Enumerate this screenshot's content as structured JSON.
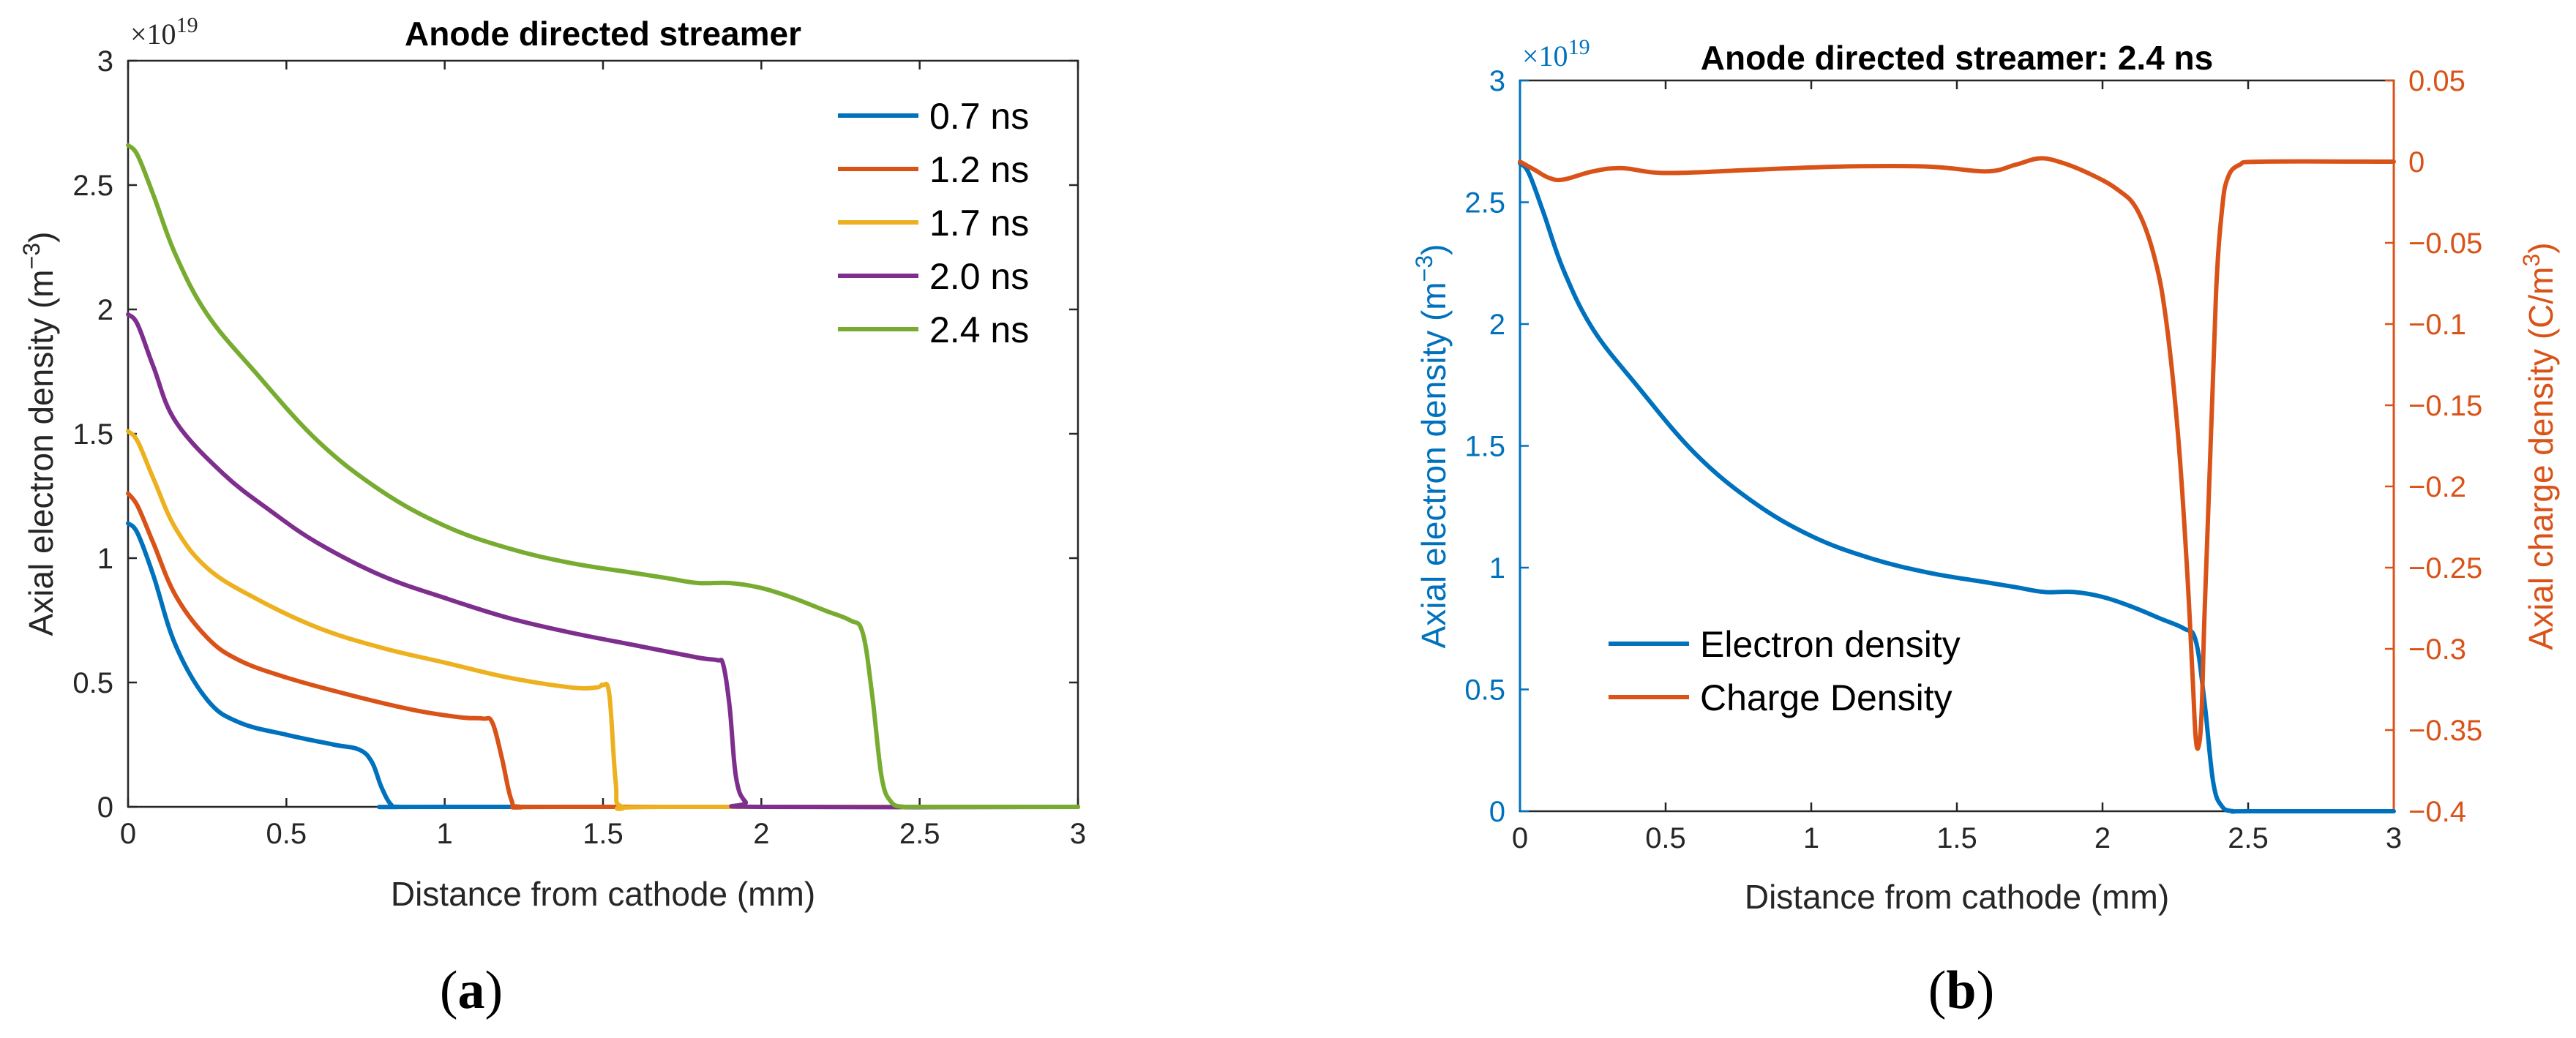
{
  "chart_data": [
    {
      "type": "line",
      "title": "Anode directed streamer",
      "xlabel": "Distance from cathode (mm)",
      "ylabel_main": "Axial electron density (m",
      "ylabel_sup": "−3",
      "ylabel_end": ")",
      "xlim": [
        0,
        3
      ],
      "ylim": [
        0,
        3
      ],
      "xticks": [
        0,
        0.5,
        1,
        1.5,
        2,
        2.5,
        3
      ],
      "xtick_labels": [
        "0",
        "0.5",
        "1",
        "1.5",
        "2",
        "2.5",
        "3"
      ],
      "yticks": [
        0,
        0.5,
        1,
        1.5,
        2,
        2.5,
        3
      ],
      "ytick_labels": [
        "0",
        "0.5",
        "1",
        "1.5",
        "2",
        "2.5",
        "3"
      ],
      "y_multiplier_base": "×10",
      "y_multiplier_exp": "19",
      "legend_position": "top-right",
      "caption": "a",
      "series": [
        {
          "name": "0.7 ns",
          "color": "#0072BD",
          "x": [
            0,
            0.03,
            0.08,
            0.15,
            0.25,
            0.35,
            0.5,
            0.65,
            0.73,
            0.77,
            0.8,
            0.83,
            0.86,
            1.0,
            3.0
          ],
          "y": [
            1.14,
            1.1,
            0.93,
            0.65,
            0.43,
            0.34,
            0.29,
            0.25,
            0.23,
            0.18,
            0.08,
            0.01,
            0.0,
            0.0,
            0.0
          ]
        },
        {
          "name": "1.2 ns",
          "color": "#D95319",
          "x": [
            0,
            0.03,
            0.08,
            0.15,
            0.25,
            0.35,
            0.5,
            0.7,
            0.9,
            1.05,
            1.12,
            1.15,
            1.18,
            1.21,
            1.24,
            1.4,
            3.0
          ],
          "y": [
            1.26,
            1.21,
            1.06,
            0.85,
            0.68,
            0.59,
            0.52,
            0.45,
            0.39,
            0.36,
            0.355,
            0.34,
            0.2,
            0.03,
            0.0,
            0.0,
            0.0
          ]
        },
        {
          "name": "1.7 ns",
          "color": "#EDB120",
          "x": [
            0,
            0.03,
            0.08,
            0.15,
            0.25,
            0.4,
            0.6,
            0.8,
            1.0,
            1.2,
            1.4,
            1.48,
            1.5,
            1.52,
            1.54,
            1.56,
            1.7,
            3.0
          ],
          "y": [
            1.51,
            1.47,
            1.32,
            1.12,
            0.96,
            0.84,
            0.72,
            0.64,
            0.58,
            0.52,
            0.48,
            0.48,
            0.49,
            0.45,
            0.1,
            0.0,
            0.0,
            0.0
          ]
        },
        {
          "name": "2.0 ns",
          "color": "#7E2F8E",
          "x": [
            0,
            0.03,
            0.08,
            0.15,
            0.3,
            0.45,
            0.6,
            0.8,
            1.0,
            1.2,
            1.4,
            1.6,
            1.8,
            1.86,
            1.88,
            1.9,
            1.92,
            1.95,
            2.0,
            3.0
          ],
          "y": [
            1.98,
            1.94,
            1.77,
            1.55,
            1.34,
            1.19,
            1.06,
            0.93,
            0.84,
            0.76,
            0.7,
            0.65,
            0.6,
            0.59,
            0.57,
            0.4,
            0.12,
            0.02,
            0.0,
            0.0
          ]
        },
        {
          "name": "2.4 ns",
          "color": "#77AC30",
          "x": [
            0,
            0.03,
            0.08,
            0.15,
            0.25,
            0.4,
            0.6,
            0.8,
            1.0,
            1.2,
            1.4,
            1.6,
            1.7,
            1.8,
            1.9,
            2.0,
            2.1,
            2.2,
            2.28,
            2.32,
            2.35,
            2.38,
            2.41,
            2.45,
            2.5,
            3.0
          ],
          "y": [
            2.66,
            2.62,
            2.46,
            2.22,
            1.98,
            1.75,
            1.47,
            1.27,
            1.13,
            1.04,
            0.98,
            0.94,
            0.92,
            0.9,
            0.9,
            0.88,
            0.84,
            0.79,
            0.75,
            0.7,
            0.45,
            0.12,
            0.02,
            0.0,
            0.0,
            0.0
          ]
        }
      ]
    },
    {
      "type": "line",
      "title": "Anode directed streamer: 2.4 ns",
      "xlabel": "Distance from cathode (mm)",
      "ylabel_main": "Axial electron density (m",
      "ylabel_sup": "−3",
      "ylabel_end": ")",
      "y2label_main": "Axial charge density (C/m",
      "y2label_sup": "3",
      "y2label_end": ")",
      "xlim": [
        0,
        3
      ],
      "ylim": [
        0,
        3
      ],
      "y2lim": [
        -0.4,
        0.05
      ],
      "xticks": [
        0,
        0.5,
        1,
        1.5,
        2,
        2.5,
        3
      ],
      "xtick_labels": [
        "0",
        "0.5",
        "1",
        "1.5",
        "2",
        "2.5",
        "3"
      ],
      "yticks": [
        0,
        0.5,
        1,
        1.5,
        2,
        2.5,
        3
      ],
      "ytick_labels": [
        "0",
        "0.5",
        "1",
        "1.5",
        "2",
        "2.5",
        "3"
      ],
      "y2ticks": [
        0.05,
        0,
        -0.05,
        -0.1,
        -0.15,
        -0.2,
        -0.25,
        -0.3,
        -0.35,
        -0.4
      ],
      "y2tick_labels": [
        "0.05",
        "0",
        "−0.05",
        "−0.1",
        "−0.15",
        "−0.2",
        "−0.25",
        "−0.3",
        "−0.35",
        "−0.4"
      ],
      "y_multiplier_base": "×10",
      "y_multiplier_exp": "19",
      "left_axis_color": "#0072BD",
      "right_axis_color": "#D95319",
      "legend_position": "bottom-left",
      "caption": "b",
      "series": [
        {
          "name": "Electron density",
          "axis": "left",
          "color": "#0072BD",
          "x": [
            0,
            0.03,
            0.08,
            0.15,
            0.25,
            0.4,
            0.6,
            0.8,
            1.0,
            1.2,
            1.4,
            1.6,
            1.7,
            1.8,
            1.9,
            2.0,
            2.1,
            2.2,
            2.28,
            2.32,
            2.35,
            2.38,
            2.41,
            2.45,
            2.5,
            3.0
          ],
          "y": [
            2.66,
            2.62,
            2.46,
            2.22,
            1.98,
            1.75,
            1.47,
            1.27,
            1.13,
            1.04,
            0.98,
            0.94,
            0.92,
            0.9,
            0.9,
            0.88,
            0.84,
            0.79,
            0.75,
            0.7,
            0.45,
            0.12,
            0.02,
            0.0,
            0.0,
            0.0
          ]
        },
        {
          "name": "Charge Density",
          "axis": "right",
          "color": "#D95319",
          "x": [
            0,
            0.05,
            0.1,
            0.15,
            0.25,
            0.35,
            0.5,
            0.8,
            1.1,
            1.4,
            1.6,
            1.7,
            1.78,
            1.85,
            1.95,
            2.05,
            2.12,
            2.18,
            2.22,
            2.26,
            2.29,
            2.31,
            2.32,
            2.33,
            2.34,
            2.35,
            2.37,
            2.39,
            2.41,
            2.43,
            2.47,
            2.55,
            3.0
          ],
          "y": [
            0.0,
            -0.005,
            -0.01,
            -0.011,
            -0.006,
            -0.004,
            -0.007,
            -0.005,
            -0.003,
            -0.003,
            -0.006,
            -0.002,
            0.002,
            0.0,
            -0.007,
            -0.017,
            -0.03,
            -0.06,
            -0.1,
            -0.17,
            -0.25,
            -0.32,
            -0.355,
            -0.36,
            -0.34,
            -0.28,
            -0.18,
            -0.08,
            -0.03,
            -0.01,
            -0.002,
            0.0,
            0.0
          ]
        }
      ]
    }
  ]
}
